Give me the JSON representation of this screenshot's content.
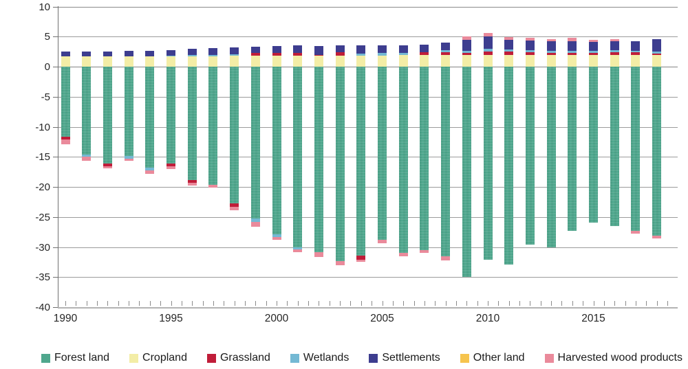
{
  "chart_data": {
    "type": "bar",
    "stacked": true,
    "title": "",
    "xlabel": "",
    "ylabel": "",
    "categories": [
      1990,
      1991,
      1992,
      1993,
      1994,
      1995,
      1996,
      1997,
      1998,
      1999,
      2000,
      2001,
      2002,
      2003,
      2004,
      2005,
      2006,
      2007,
      2008,
      2009,
      2010,
      2011,
      2012,
      2013,
      2014,
      2015,
      2016,
      2017,
      2018
    ],
    "series": [
      {
        "name": "Forest land",
        "color": "#4fa78d",
        "values": [
          -11.7,
          -14.6,
          -16.1,
          -14.9,
          -16.8,
          -16.1,
          -18.9,
          -19.6,
          -22.7,
          -25.3,
          -27.9,
          -30.0,
          -30.9,
          -32.3,
          -31.4,
          -28.8,
          -31.0,
          -30.5,
          -31.5,
          -35.0,
          -32.1,
          -32.9,
          -29.6,
          -30.0,
          -27.3,
          -25.9,
          -26.5,
          -27.3,
          -28.1
        ]
      },
      {
        "name": "Cropland",
        "color": "#f3eda6",
        "values": [
          1.7,
          1.7,
          1.7,
          1.7,
          1.7,
          1.7,
          1.75,
          1.75,
          1.8,
          1.8,
          1.8,
          1.8,
          1.85,
          1.85,
          1.85,
          1.85,
          1.9,
          1.95,
          2.0,
          2.0,
          2.0,
          2.0,
          2.0,
          2.0,
          2.0,
          2.0,
          2.0,
          2.0,
          2.0
        ]
      },
      {
        "name": "Grassland",
        "color": "#c01d39",
        "values": [
          -0.45,
          0,
          -0.5,
          0,
          0,
          -0.5,
          -0.4,
          0,
          -0.6,
          0.45,
          0.5,
          0.5,
          0.1,
          0.5,
          -0.7,
          0,
          0,
          0.5,
          0.35,
          0.25,
          0.55,
          0.5,
          0.4,
          0.3,
          0.3,
          0.25,
          0.45,
          0.45,
          0.15
        ]
      },
      {
        "name": "Wetlands",
        "color": "#74b9d4",
        "values": [
          0,
          -0.4,
          0,
          -0.4,
          -0.45,
          0.15,
          0.25,
          0.25,
          0.3,
          -0.5,
          -0.4,
          -0.4,
          0,
          0,
          0.35,
          0.45,
          0.4,
          0,
          0.35,
          0.35,
          0.4,
          0.35,
          0.35,
          0.35,
          0.35,
          0.35,
          0.25,
          0.15,
          0.4
        ]
      },
      {
        "name": "Settlements",
        "color": "#3d3d8f",
        "values": [
          0.85,
          0.85,
          0.85,
          0.9,
          0.95,
          0.95,
          0.95,
          1.05,
          1.1,
          1.05,
          1.1,
          1.2,
          1.5,
          1.2,
          1.3,
          1.25,
          1.3,
          1.25,
          1.3,
          1.9,
          2.05,
          1.6,
          1.55,
          1.55,
          1.6,
          1.55,
          1.55,
          1.6,
          2.0
        ]
      },
      {
        "name": "Other land",
        "color": "#f6c44e",
        "values": [
          0,
          0,
          0,
          0,
          0,
          0,
          0,
          0,
          0,
          0,
          0,
          0,
          0,
          0,
          0,
          0,
          0,
          0,
          0,
          0,
          0,
          0,
          0,
          0,
          0,
          0,
          0,
          0,
          0
        ]
      },
      {
        "name": "Harvested wood products",
        "color": "#ea8a9b",
        "values": [
          -0.75,
          -0.7,
          -0.3,
          -0.3,
          -0.55,
          -0.4,
          -0.5,
          -0.5,
          -0.6,
          -0.8,
          -0.5,
          -0.4,
          -0.7,
          -0.7,
          -0.4,
          -0.6,
          -0.5,
          -0.45,
          -0.7,
          0.5,
          0.6,
          0.45,
          0.45,
          0.35,
          0.5,
          0.35,
          0.3,
          -0.5,
          -0.5
        ]
      }
    ],
    "ylim": [
      -40,
      10
    ],
    "ytick_step": 5,
    "y_ticks": [
      10,
      5,
      0,
      -5,
      -10,
      -15,
      -20,
      -25,
      -30,
      -35,
      -40
    ],
    "x_tick_labels": [
      "1990",
      "1995",
      "2000",
      "2005",
      "2010",
      "2015"
    ],
    "x_tick_indices": [
      0,
      5,
      10,
      15,
      20,
      25
    ],
    "grid": true,
    "legend_position": "bottom"
  }
}
